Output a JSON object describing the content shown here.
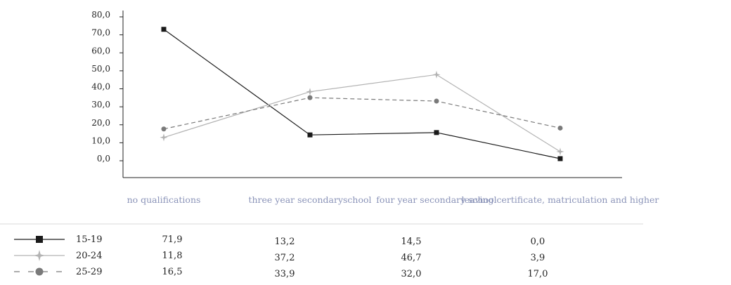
{
  "chart_data": {
    "type": "line",
    "categories": [
      "no qualifications",
      "three year secondaryschool",
      "four year secondary school",
      "leaving certificate, matriculation and higher"
    ],
    "ylim": [
      0,
      80
    ],
    "y_ticks": [
      "0,0",
      "10,0",
      "20,0",
      "30,0",
      "40,0",
      "50,0",
      "60,0",
      "70,0",
      "80,0"
    ],
    "grid": false,
    "legend_placement": "bottom data table",
    "series": [
      {
        "name": "15-19",
        "values": [
          71.9,
          13.2,
          14.5,
          0.0
        ],
        "labels": [
          "71,9",
          "13,2",
          "14,5",
          "0,0"
        ],
        "color": "#1a1a1a",
        "marker": "square",
        "dash": ""
      },
      {
        "name": "20-24",
        "values": [
          11.8,
          37.2,
          46.7,
          3.9
        ],
        "labels": [
          "11,8",
          "37,2",
          "46,7",
          "3,9"
        ],
        "color": "#b3b3b3",
        "marker": "star",
        "dash": ""
      },
      {
        "name": "25-29",
        "values": [
          16.5,
          33.9,
          32.0,
          17.0
        ],
        "labels": [
          "16,5",
          "33,9",
          "32,0",
          "17,0"
        ],
        "color": "#7a7a7a",
        "marker": "circle",
        "dash": "6,4"
      }
    ]
  }
}
